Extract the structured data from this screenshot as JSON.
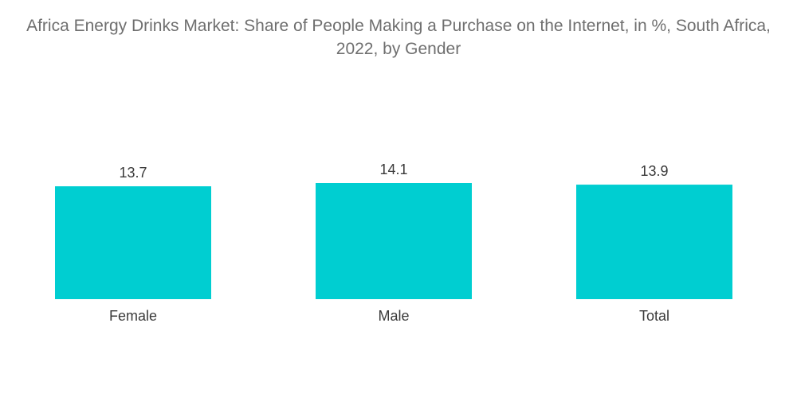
{
  "chart_data": {
    "type": "bar",
    "title": "Africa Energy Drinks Market: Share of People Making a Purchase on the Internet, in %, South Africa, 2022, by Gender",
    "categories": [
      "Female",
      "Male",
      "Total"
    ],
    "values": [
      13.7,
      14.1,
      13.9
    ],
    "value_labels": [
      "13.7",
      "14.1",
      "13.9"
    ],
    "xlabel": "",
    "ylabel": "",
    "ylim": [
      0,
      14.1
    ],
    "grid": false,
    "legend": "none",
    "bar_color": "#00ced1"
  }
}
